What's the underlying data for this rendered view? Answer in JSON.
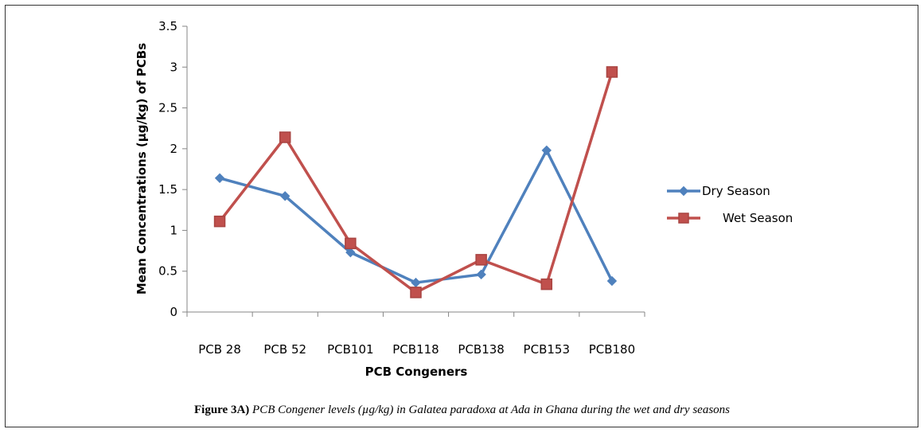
{
  "chart_data": {
    "type": "line",
    "categories": [
      "PCB 28",
      "PCB 52",
      "PCB101",
      "PCB118",
      "PCB138",
      "PCB153",
      "PCB180"
    ],
    "series": [
      {
        "name": "Dry Season",
        "color": "#4F81BD",
        "marker": "diamond",
        "values": [
          1.64,
          1.42,
          0.73,
          0.36,
          0.46,
          1.98,
          0.38
        ]
      },
      {
        "name": "Wet Season",
        "color": "#C0504D",
        "marker": "square",
        "values": [
          1.11,
          2.14,
          0.84,
          0.24,
          0.64,
          0.34,
          2.94
        ]
      }
    ],
    "xlabel": "PCB Congeners",
    "ylabel": "Mean Concentrations (µg/kg) of PCBs",
    "ylim": [
      0,
      3.5
    ],
    "yticks": [
      "0",
      "0.5",
      "1",
      "1.5",
      "2",
      "2.5",
      "3",
      "3.5"
    ],
    "grid": false,
    "legend": "right"
  },
  "caption": {
    "label": "Figure 3A)",
    "text": "PCB Congener levels (µg/kg) in Galatea paradoxa at Ada in Ghana during the wet and dry seasons"
  }
}
